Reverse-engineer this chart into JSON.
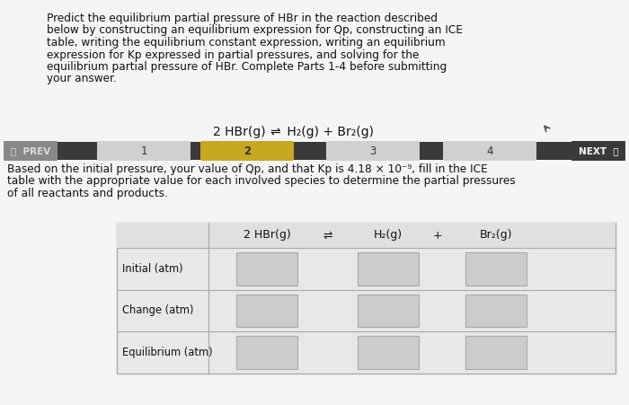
{
  "bg_color": "#f0f0f0",
  "white_bg": "#ffffff",
  "title_text_lines": [
    "Predict the equilibrium partial pressure of HBr in the reaction described",
    "below by constructing an equilibrium expression for Qp, constructing an ICE",
    "table, writing the equilibrium constant expression, writing an equilibrium",
    "expression for Kp expressed in partial pressures, and solving for the",
    "equilibrium partial pressure of HBr. Complete Parts 1-4 before submitting",
    "your answer."
  ],
  "equation_parts": [
    "2 HBr(g) ",
    "⇌",
    " H₂(g) + Br₂(g)"
  ],
  "nav": {
    "prev_label": "〈  PREV",
    "next_label": "NEXT  〉",
    "steps": [
      "1",
      "2",
      "3",
      "4"
    ],
    "active_step": 1,
    "bg_color": "#3a3a3a",
    "prev_color": "#555555",
    "step_inactive_color": "#d0d0d0",
    "active_color": "#c8a820",
    "next_color": "#3a3a3a",
    "text_dark": "#222222",
    "text_light": "#ffffff"
  },
  "body_text_lines": [
    "Based on the initial pressure, your value of Qp, and that Kp is 4.18 × 10⁻⁹, fill in the ICE",
    "table with the appropriate value for each involved species to determine the partial pressures",
    "of all reactants and products."
  ],
  "table": {
    "col_headers": [
      "2 HBr(g)",
      "⇌",
      "H₂(g)",
      "+",
      "Br₂(g)"
    ],
    "row_headers": [
      "Initial (atm)",
      "Change (atm)",
      "Equilibrium (atm)"
    ],
    "input_box_color": "#cccccc",
    "table_bg": "#e8e8e8",
    "header_bg": "#e0e0e0",
    "border_color": "#aaaaaa",
    "input_border": "#aaaaaa"
  }
}
